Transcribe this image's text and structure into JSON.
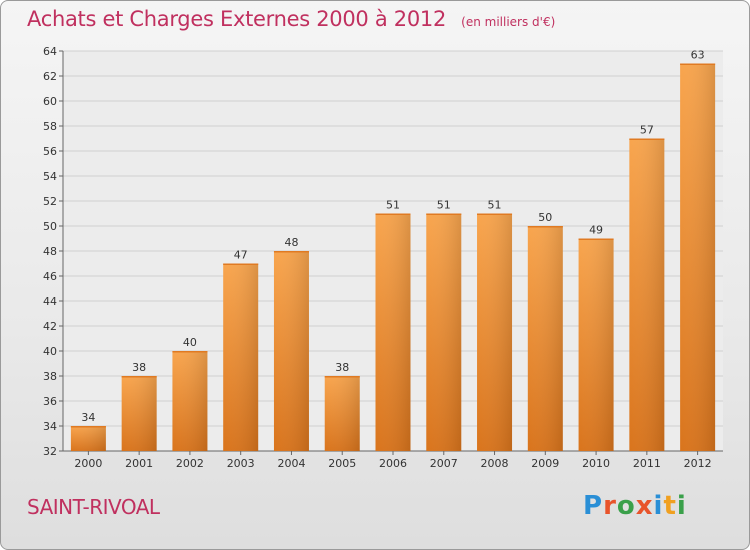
{
  "title": "Achats et Charges Externes 2000 à 2012",
  "unit": "(en milliers d'€)",
  "location": "SAINT-RIVOAL",
  "logo": {
    "text": "Proxiti",
    "letter_colors": [
      "#2a8fd6",
      "#e8542b",
      "#3aa04a",
      "#e8542b",
      "#2a8fd6",
      "#f0a020",
      "#3aa04a"
    ]
  },
  "colors": {
    "bar_top": "#f8a54e",
    "bar_bottom": "#d9741c",
    "title": "#c0305f",
    "grid": "#d0d0d0",
    "axis_text": "#333333"
  },
  "chart_data": {
    "type": "bar",
    "categories": [
      "2000",
      "2001",
      "2002",
      "2003",
      "2004",
      "2005",
      "2006",
      "2007",
      "2008",
      "2009",
      "2010",
      "2011",
      "2012"
    ],
    "values": [
      34,
      38,
      40,
      47,
      48,
      38,
      51,
      51,
      51,
      50,
      49,
      57,
      63
    ],
    "y_ticks": [
      "32",
      "34",
      "36",
      "38",
      "40",
      "42",
      "44",
      "46",
      "48",
      "50",
      "52",
      "54",
      "56",
      "58",
      "60",
      "62",
      "64"
    ],
    "ylim": [
      32,
      64
    ],
    "grid": true
  }
}
